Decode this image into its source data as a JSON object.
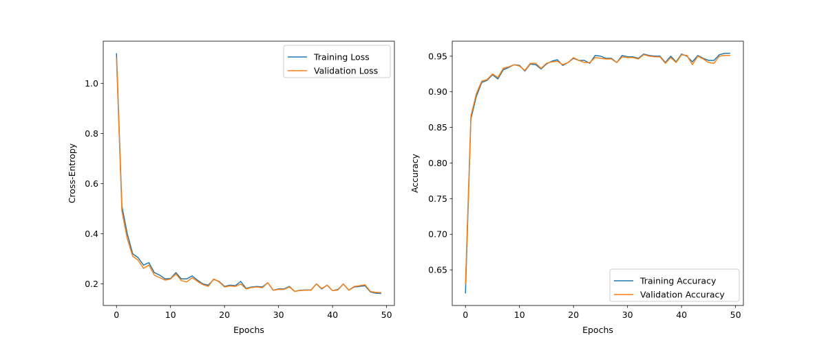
{
  "chart_data": [
    {
      "type": "line",
      "xlabel": "Epochs",
      "ylabel": "Cross-Entropy",
      "xlim": [
        -2.45,
        51.45
      ],
      "ylim": [
        0.114,
        1.168
      ],
      "xticks": [
        0,
        10,
        20,
        30,
        40,
        50
      ],
      "yticks": [
        0.2,
        0.4,
        0.6,
        0.8,
        1.0
      ],
      "ytick_labels": [
        "0.2",
        "0.4",
        "0.6",
        "0.8",
        "1.0"
      ],
      "grid": false,
      "legend_position": "top-right",
      "x": [
        0,
        1,
        2,
        3,
        4,
        5,
        6,
        7,
        8,
        9,
        10,
        11,
        12,
        13,
        14,
        15,
        16,
        17,
        18,
        19,
        20,
        21,
        22,
        23,
        24,
        25,
        26,
        27,
        28,
        29,
        30,
        31,
        32,
        33,
        34,
        35,
        36,
        37,
        38,
        39,
        40,
        41,
        42,
        43,
        44,
        45,
        46,
        47,
        48,
        49
      ],
      "series": [
        {
          "name": "Training Loss",
          "color": "#1f77b4",
          "values": [
            1.12,
            0.51,
            0.4,
            0.32,
            0.305,
            0.275,
            0.285,
            0.245,
            0.235,
            0.22,
            0.222,
            0.245,
            0.22,
            0.22,
            0.232,
            0.215,
            0.2,
            0.195,
            0.218,
            0.21,
            0.19,
            0.195,
            0.193,
            0.21,
            0.182,
            0.188,
            0.19,
            0.188,
            0.205,
            0.175,
            0.18,
            0.18,
            0.19,
            0.17,
            0.175,
            0.176,
            0.176,
            0.2,
            0.18,
            0.195,
            0.173,
            0.178,
            0.2,
            0.175,
            0.188,
            0.19,
            0.193,
            0.168,
            0.163,
            0.162
          ]
        },
        {
          "name": "Validation Loss",
          "color": "#ff7f0e",
          "values": [
            1.1,
            0.49,
            0.38,
            0.31,
            0.295,
            0.262,
            0.275,
            0.235,
            0.225,
            0.215,
            0.22,
            0.24,
            0.213,
            0.208,
            0.225,
            0.21,
            0.197,
            0.19,
            0.22,
            0.208,
            0.188,
            0.192,
            0.19,
            0.2,
            0.18,
            0.186,
            0.188,
            0.185,
            0.205,
            0.175,
            0.178,
            0.178,
            0.188,
            0.17,
            0.174,
            0.175,
            0.175,
            0.2,
            0.182,
            0.195,
            0.173,
            0.176,
            0.2,
            0.175,
            0.19,
            0.193,
            0.197,
            0.17,
            0.166,
            0.166
          ]
        }
      ]
    },
    {
      "type": "line",
      "xlabel": "Epochs",
      "ylabel": "Accuracy",
      "xlim": [
        -2.45,
        51.45
      ],
      "ylim": [
        0.6,
        0.971
      ],
      "xticks": [
        0,
        10,
        20,
        30,
        40,
        50
      ],
      "yticks": [
        0.65,
        0.7,
        0.75,
        0.8,
        0.85,
        0.9,
        0.95
      ],
      "ytick_labels": [
        "0.65",
        "0.70",
        "0.75",
        "0.80",
        "0.85",
        "0.90",
        "0.95"
      ],
      "grid": false,
      "legend_position": "bottom-right",
      "x": [
        0,
        1,
        2,
        3,
        4,
        5,
        6,
        7,
        8,
        9,
        10,
        11,
        12,
        13,
        14,
        15,
        16,
        17,
        18,
        19,
        20,
        21,
        22,
        23,
        24,
        25,
        26,
        27,
        28,
        29,
        30,
        31,
        32,
        33,
        34,
        35,
        36,
        37,
        38,
        39,
        40,
        41,
        42,
        43,
        44,
        45,
        46,
        47,
        48,
        49
      ],
      "series": [
        {
          "name": "Training Accuracy",
          "color": "#1f77b4",
          "values": [
            0.617,
            0.862,
            0.893,
            0.913,
            0.916,
            0.924,
            0.918,
            0.931,
            0.934,
            0.938,
            0.937,
            0.929,
            0.939,
            0.938,
            0.932,
            0.939,
            0.943,
            0.945,
            0.937,
            0.941,
            0.947,
            0.944,
            0.944,
            0.94,
            0.951,
            0.95,
            0.947,
            0.947,
            0.941,
            0.951,
            0.949,
            0.949,
            0.947,
            0.953,
            0.951,
            0.95,
            0.95,
            0.941,
            0.95,
            0.942,
            0.953,
            0.95,
            0.942,
            0.951,
            0.947,
            0.944,
            0.944,
            0.952,
            0.954,
            0.954
          ]
        },
        {
          "name": "Validation Accuracy",
          "color": "#ff7f0e",
          "values": [
            0.63,
            0.866,
            0.897,
            0.915,
            0.917,
            0.925,
            0.92,
            0.933,
            0.935,
            0.938,
            0.936,
            0.93,
            0.94,
            0.94,
            0.933,
            0.94,
            0.942,
            0.943,
            0.938,
            0.941,
            0.948,
            0.944,
            0.941,
            0.941,
            0.948,
            0.947,
            0.946,
            0.946,
            0.941,
            0.949,
            0.948,
            0.948,
            0.946,
            0.952,
            0.95,
            0.949,
            0.949,
            0.94,
            0.948,
            0.941,
            0.952,
            0.951,
            0.938,
            0.95,
            0.946,
            0.941,
            0.94,
            0.95,
            0.951,
            0.951
          ]
        }
      ]
    }
  ]
}
